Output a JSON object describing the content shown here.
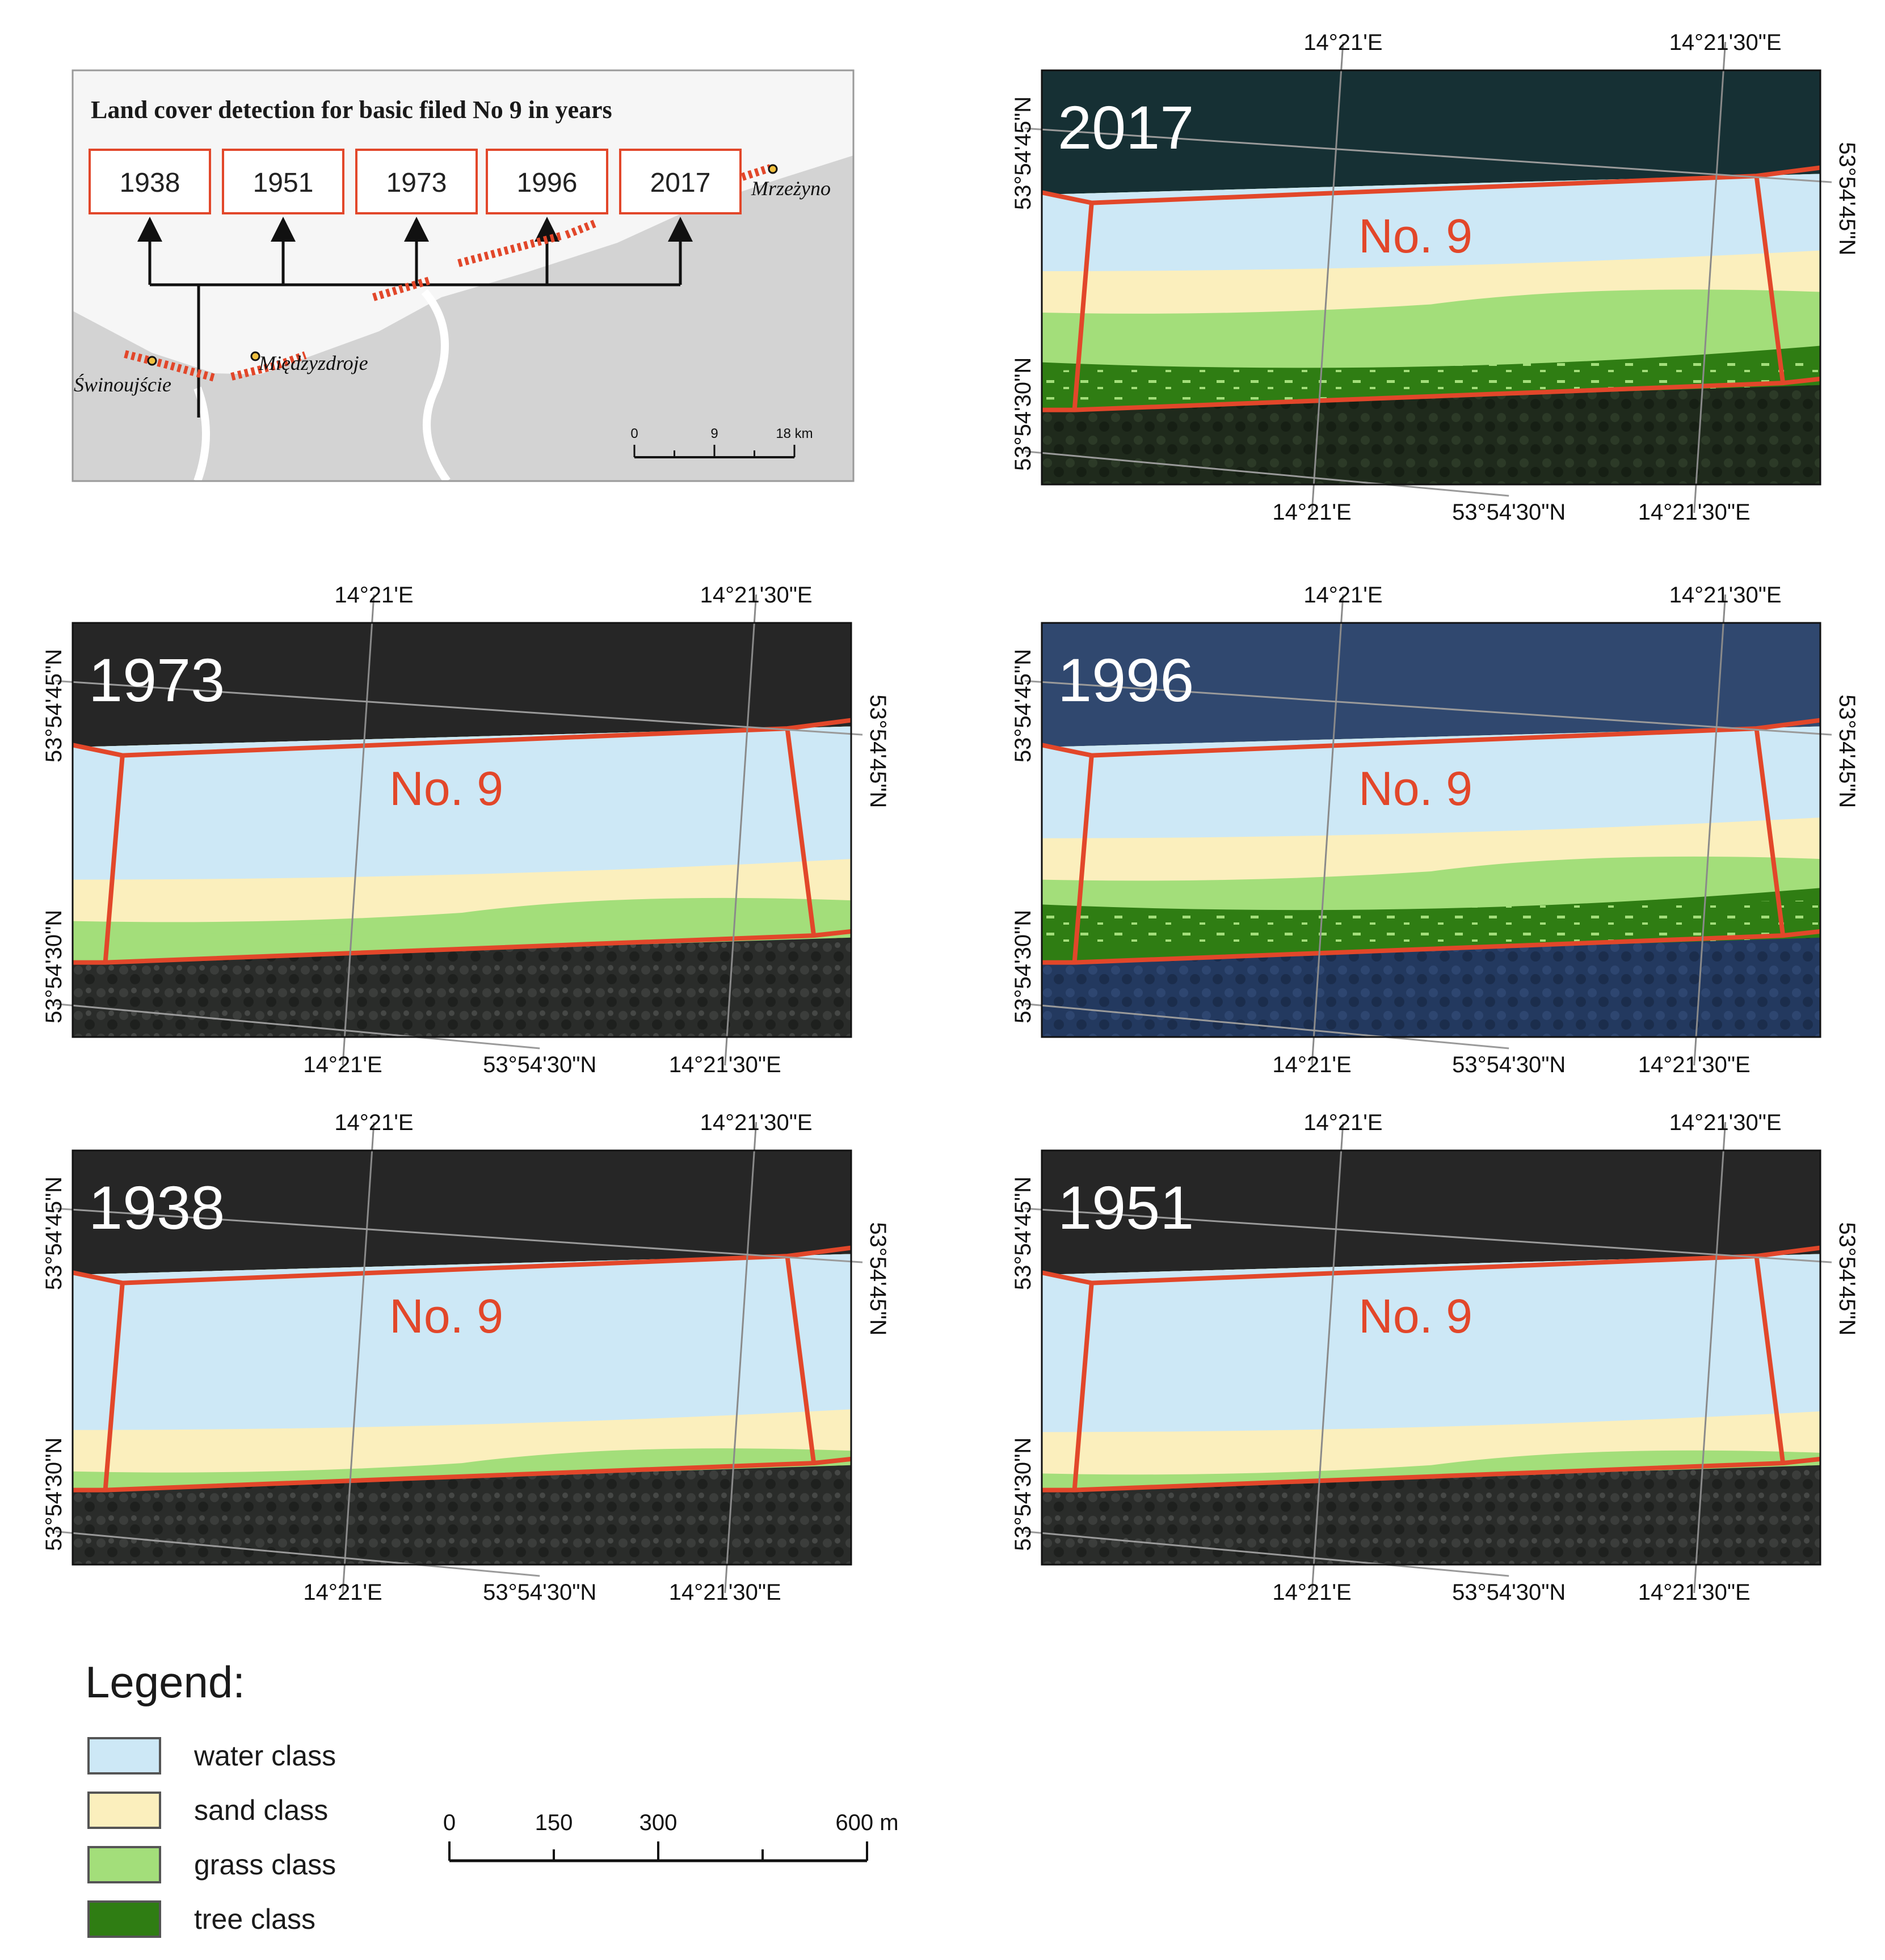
{
  "inset": {
    "title": "Land cover detection for basic filed No 9 in years",
    "years": [
      "1938",
      "1951",
      "1973",
      "1996",
      "2017"
    ],
    "towns": {
      "swinoujscie": "Świnoujście",
      "miedzyzdroje": "Międzyzdroje",
      "mrzezyno": "Mrzeżyno"
    },
    "scale": {
      "labels": [
        "0",
        "9",
        "18 km"
      ]
    }
  },
  "coords": {
    "lon1": "14°21'E",
    "lon2": "14°21'30\"E",
    "lat_top": "53°54'45\"N",
    "lat_bottom": "53°54'30\"N"
  },
  "field_label": "No. 9",
  "panels": [
    {
      "id": "2017",
      "year": "2017"
    },
    {
      "id": "1973",
      "year": "1973"
    },
    {
      "id": "1996",
      "year": "1996"
    },
    {
      "id": "1938",
      "year": "1938"
    },
    {
      "id": "1951",
      "year": "1951"
    }
  ],
  "legend": {
    "title": "Legend:",
    "items": [
      {
        "label": "water class",
        "color": "#cde8f6"
      },
      {
        "label": "sand class",
        "color": "#fbefbd"
      },
      {
        "label": "grass class",
        "color": "#a3de7a"
      },
      {
        "label": "tree class",
        "color": "#2f7d13"
      }
    ]
  },
  "scalebar": {
    "labels": [
      "0",
      "150",
      "300",
      "600 m"
    ]
  }
}
